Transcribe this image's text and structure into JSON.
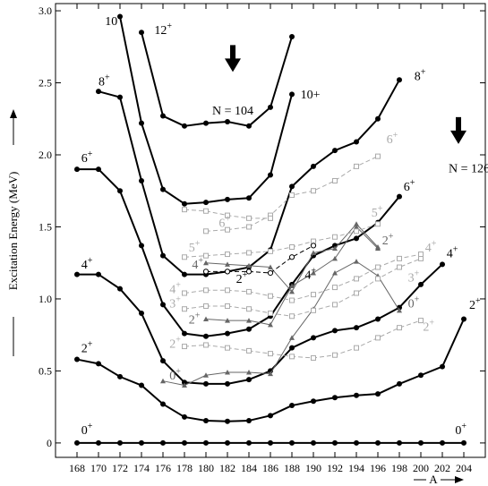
{
  "chart_data": {
    "type": "line",
    "ylabel": "Excitation Energy (MeV)",
    "xlabel": "A",
    "xlim": [
      166,
      206
    ],
    "ylim": [
      -0.1,
      3.05
    ],
    "xticks": [
      168,
      170,
      172,
      174,
      176,
      178,
      180,
      182,
      184,
      186,
      188,
      190,
      192,
      194,
      196,
      198,
      200,
      202,
      204
    ],
    "yticks": [
      0,
      0.5,
      1.0,
      1.5,
      2.0,
      2.5,
      3.0
    ],
    "ytick_labels": [
      "0",
      "0.5",
      "1.0",
      "1.5",
      "2.0",
      "2.5",
      "3.0"
    ],
    "annotations": [
      {
        "id": "n104",
        "text": "N = 104",
        "x": 182.5,
        "y": 2.28,
        "arrow_x": 182.5,
        "arrow_y": 2.65
      },
      {
        "id": "n126",
        "text": "N = 126",
        "x": 204.5,
        "y": 1.88,
        "arrow_x": 203.5,
        "arrow_y": 2.15
      }
    ],
    "series": [
      {
        "id": "yrast0",
        "color": "#000000",
        "marker": "filled-circle",
        "width": 2,
        "x": [
          168,
          170,
          172,
          174,
          176,
          178,
          180,
          182,
          184,
          186,
          188,
          190,
          192,
          194,
          196,
          198,
          200,
          202,
          204
        ],
        "y": [
          0,
          0,
          0,
          0,
          0,
          0,
          0,
          0,
          0,
          0,
          0,
          0,
          0,
          0,
          0,
          0,
          0,
          0,
          0
        ]
      },
      {
        "id": "yrast2",
        "color": "#000000",
        "marker": "filled-circle",
        "width": 2,
        "x": [
          168,
          170,
          172,
          174,
          176,
          178,
          180,
          182,
          184,
          186,
          188,
          190,
          192,
          194,
          196,
          198,
          200,
          202,
          204
        ],
        "y": [
          0.58,
          0.55,
          0.46,
          0.4,
          0.27,
          0.18,
          0.155,
          0.15,
          0.155,
          0.19,
          0.26,
          0.29,
          0.315,
          0.33,
          0.34,
          0.41,
          0.47,
          0.53,
          0.86
        ]
      },
      {
        "id": "yrast4",
        "color": "#000000",
        "marker": "filled-circle",
        "width": 2,
        "x": [
          168,
          170,
          172,
          174,
          176,
          178,
          180,
          182,
          184,
          186,
          188,
          190,
          192,
          194,
          196,
          198,
          200,
          202
        ],
        "y": [
          1.17,
          1.17,
          1.07,
          0.9,
          0.57,
          0.42,
          0.41,
          0.41,
          0.44,
          0.5,
          0.66,
          0.73,
          0.78,
          0.8,
          0.86,
          0.94,
          1.1,
          1.24
        ]
      },
      {
        "id": "yrast6",
        "color": "#000000",
        "marker": "filled-circle",
        "width": 2,
        "x": [
          168,
          170,
          172,
          174,
          176,
          178,
          180,
          182,
          184,
          186,
          188,
          190,
          192,
          194,
          196,
          198
        ],
        "y": [
          1.9,
          1.9,
          1.75,
          1.37,
          0.96,
          0.76,
          0.74,
          0.76,
          0.79,
          0.88,
          1.1,
          1.3,
          1.37,
          1.42,
          1.53,
          1.71
        ]
      },
      {
        "id": "yrast8",
        "color": "#000000",
        "marker": "filled-circle",
        "width": 2,
        "x": [
          170,
          172,
          174,
          176,
          178,
          180,
          182,
          184,
          186,
          188,
          190,
          192,
          194,
          196,
          198
        ],
        "y": [
          2.44,
          2.4,
          1.82,
          1.3,
          1.17,
          1.17,
          1.19,
          1.22,
          1.34,
          1.78,
          1.92,
          2.03,
          2.09,
          2.25,
          2.52
        ]
      },
      {
        "id": "yrast10",
        "color": "#000000",
        "marker": "filled-circle",
        "width": 2,
        "x": [
          172,
          174,
          176,
          178,
          180,
          182,
          184,
          186,
          188
        ],
        "y": [
          2.96,
          2.22,
          1.76,
          1.66,
          1.67,
          1.69,
          1.7,
          1.86,
          2.42
        ]
      },
      {
        "id": "yrast12",
        "color": "#000000",
        "marker": "filled-circle",
        "width": 2,
        "x": [
          174,
          176,
          178,
          180,
          182,
          184,
          186,
          188
        ],
        "y": [
          2.85,
          2.27,
          2.2,
          2.22,
          2.23,
          2.2,
          2.33,
          2.82
        ]
      },
      {
        "id": "band02",
        "color": "#666666",
        "marker": "filled-triangle",
        "width": 1,
        "x": [
          176,
          178,
          180,
          182,
          184,
          186,
          188,
          190,
          192,
          194,
          196,
          198
        ],
        "y": [
          0.43,
          0.4,
          0.47,
          0.49,
          0.49,
          0.48,
          0.73,
          0.93,
          1.18,
          1.26,
          1.16,
          0.92
        ]
      },
      {
        "id": "band22",
        "color": "#666666",
        "marker": "filled-triangle",
        "width": 1,
        "x": [
          180,
          182,
          184,
          186,
          188,
          190,
          192,
          194,
          196
        ],
        "y": [
          0.86,
          0.85,
          0.85,
          0.82,
          1.09,
          1.18,
          1.28,
          1.5,
          1.35
        ]
      },
      {
        "id": "band42",
        "color": "#666666",
        "marker": "filled-triangle",
        "width": 1,
        "x": [
          180,
          182,
          184,
          186,
          188,
          190,
          192,
          194,
          196
        ],
        "y": [
          1.25,
          1.24,
          1.23,
          1.22,
          1.05,
          1.32,
          1.35,
          1.52,
          1.36
        ]
      },
      {
        "id": "gamma2",
        "color": "#aaaaaa",
        "marker": "open-square",
        "width": 1,
        "dashed": true,
        "x": [
          178,
          180,
          182,
          184,
          186,
          188,
          190,
          192,
          194,
          196,
          198,
          200
        ],
        "y": [
          0.67,
          0.68,
          0.66,
          0.64,
          0.62,
          0.6,
          0.59,
          0.61,
          0.66,
          0.73,
          0.8,
          0.85
        ]
      },
      {
        "id": "gamma3",
        "color": "#aaaaaa",
        "marker": "open-square",
        "width": 1,
        "dashed": true,
        "x": [
          178,
          180,
          182,
          184,
          186,
          188,
          190,
          192,
          194,
          196,
          198,
          200
        ],
        "y": [
          0.93,
          0.95,
          0.95,
          0.93,
          0.9,
          0.88,
          0.92,
          0.96,
          1.04,
          1.14,
          1.22,
          1.28
        ]
      },
      {
        "id": "gamma4",
        "color": "#aaaaaa",
        "marker": "open-square",
        "width": 1,
        "dashed": true,
        "x": [
          178,
          180,
          182,
          184,
          186,
          188,
          190,
          192,
          194,
          196,
          198,
          200
        ],
        "y": [
          1.04,
          1.06,
          1.06,
          1.05,
          1.02,
          0.99,
          1.03,
          1.08,
          1.14,
          1.22,
          1.28,
          1.31
        ]
      },
      {
        "id": "gamma5",
        "color": "#aaaaaa",
        "marker": "open-square",
        "width": 1,
        "dashed": true,
        "x": [
          178,
          180,
          182,
          184,
          186,
          188,
          190,
          192,
          194,
          196
        ],
        "y": [
          1.29,
          1.3,
          1.31,
          1.32,
          1.33,
          1.36,
          1.4,
          1.43,
          1.47,
          1.52
        ]
      },
      {
        "id": "gamma6",
        "color": "#aaaaaa",
        "marker": "open-square",
        "width": 1,
        "dashed": true,
        "x": [
          180,
          182,
          184,
          186,
          188,
          190,
          192,
          194,
          196
        ],
        "y": [
          1.47,
          1.48,
          1.5,
          1.58,
          1.72,
          1.75,
          1.82,
          1.92,
          1.99
        ]
      },
      {
        "id": "gamma6b",
        "color": "#aaaaaa",
        "marker": "open-square",
        "width": 1,
        "dashed": true,
        "x": [
          178,
          180,
          182,
          184,
          186
        ],
        "y": [
          1.62,
          1.61,
          1.58,
          1.56,
          1.56
        ]
      },
      {
        "id": "oblate",
        "color": "#000000",
        "marker": "open-circle",
        "width": 1,
        "dashed": true,
        "x": [
          180,
          182,
          184,
          186,
          188,
          190
        ],
        "y": [
          1.19,
          1.19,
          1.19,
          1.18,
          1.29,
          1.37
        ]
      }
    ],
    "level_labels": [
      {
        "base": "0",
        "sup": "+",
        "x": 168.4,
        "y": 0.06,
        "color": "#000000"
      },
      {
        "base": "0",
        "sup": "+",
        "x": 203.2,
        "y": 0.06,
        "color": "#000000"
      },
      {
        "base": "2",
        "sup": "+",
        "x": 168.4,
        "y": 0.63,
        "color": "#000000"
      },
      {
        "base": "2",
        "sup": "+",
        "x": 204.5,
        "y": 0.93,
        "color": "#000000"
      },
      {
        "base": "4",
        "sup": "+",
        "x": 168.4,
        "y": 1.21,
        "color": "#000000"
      },
      {
        "base": "4",
        "sup": "+",
        "x": 202.4,
        "y": 1.29,
        "color": "#000000"
      },
      {
        "base": "6",
        "sup": "+",
        "x": 168.4,
        "y": 1.95,
        "color": "#000000"
      },
      {
        "base": "6",
        "sup": "+",
        "x": 198.4,
        "y": 1.75,
        "color": "#000000"
      },
      {
        "base": "8",
        "sup": "+",
        "x": 170.0,
        "y": 2.48,
        "color": "#000000"
      },
      {
        "base": "8",
        "sup": "+",
        "x": 199.4,
        "y": 2.52,
        "color": "#000000"
      },
      {
        "base": "10",
        "sup": "+",
        "x": 170.6,
        "y": 2.9,
        "color": "#000000"
      },
      {
        "base": "10+",
        "sup": "",
        "x": 188.8,
        "y": 2.39,
        "color": "#000000"
      },
      {
        "base": "12",
        "sup": "+",
        "x": 175.2,
        "y": 2.84,
        "color": "#000000"
      },
      {
        "base": "0",
        "sup": "+",
        "x": 176.6,
        "y": 0.44,
        "color": "#666666"
      },
      {
        "base": "2",
        "sup": "+",
        "x": 178.4,
        "y": 0.83,
        "color": "#666666"
      },
      {
        "base": "4",
        "sup": "+",
        "x": 178.7,
        "y": 1.21,
        "color": "#666666"
      },
      {
        "base": "2",
        "sup": "+",
        "x": 196.4,
        "y": 1.38,
        "color": "#666666"
      },
      {
        "base": "0",
        "sup": "+",
        "x": 198.8,
        "y": 0.94,
        "color": "#666666"
      },
      {
        "base": "2",
        "sup": "+",
        "x": 182.8,
        "y": 1.11,
        "color": "#000000"
      },
      {
        "base": "4",
        "sup": "+",
        "x": 189.2,
        "y": 1.14,
        "color": "#000000"
      },
      {
        "base": "2",
        "sup": "+",
        "x": 176.6,
        "y": 0.66,
        "color": "#aaaaaa"
      },
      {
        "base": "3",
        "sup": "+",
        "x": 176.6,
        "y": 0.94,
        "color": "#aaaaaa"
      },
      {
        "base": "4",
        "sup": "+",
        "x": 176.6,
        "y": 1.04,
        "color": "#aaaaaa"
      },
      {
        "base": "5",
        "sup": "+",
        "x": 178.4,
        "y": 1.33,
        "color": "#aaaaaa"
      },
      {
        "base": "6",
        "sup": "+",
        "x": 181.2,
        "y": 1.5,
        "color": "#aaaaaa"
      },
      {
        "base": "6",
        "sup": "+",
        "x": 196.8,
        "y": 2.08,
        "color": "#aaaaaa"
      },
      {
        "base": "5",
        "sup": "+",
        "x": 195.4,
        "y": 1.57,
        "color": "#aaaaaa"
      },
      {
        "base": "4",
        "sup": "+",
        "x": 200.4,
        "y": 1.33,
        "color": "#aaaaaa"
      },
      {
        "base": "3",
        "sup": "+",
        "x": 198.8,
        "y": 1.12,
        "color": "#aaaaaa"
      },
      {
        "base": "2",
        "sup": "+",
        "x": 200.2,
        "y": 0.78,
        "color": "#aaaaaa"
      }
    ]
  }
}
